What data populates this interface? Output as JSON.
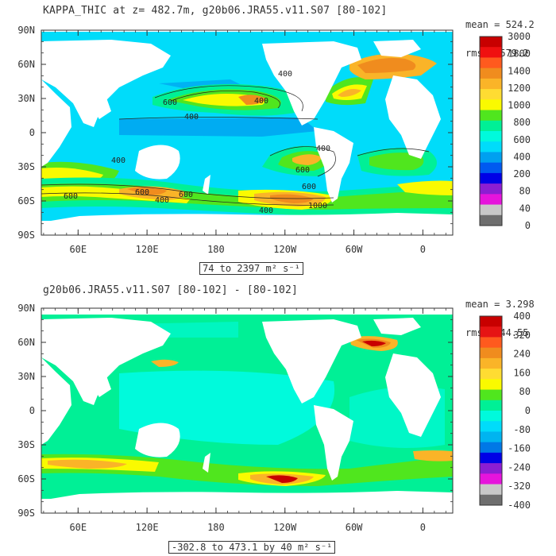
{
  "panels": [
    {
      "title": "KAPPA_THIC at z= 482.7m, g20b06.JRA55.v11.S07 [80-102]",
      "mean": "mean = 524.2",
      "rms": "rms = 579.2",
      "range_label": "74 to 2397 m² s⁻¹",
      "lat_labels": [
        "90N",
        "60N",
        "30N",
        "0",
        "30S",
        "60S",
        "90S"
      ],
      "lon_labels": [
        "60E",
        "120E",
        "180",
        "120W",
        "60W",
        "0"
      ],
      "colorbar_labels": [
        "3000",
        "1800",
        "1400",
        "1200",
        "1000",
        "800",
        "600",
        "400",
        "200",
        "80",
        "40",
        "0"
      ],
      "colorbar_colors": [
        "#c80000",
        "#f01010",
        "#ff5a1e",
        "#f08c1e",
        "#fab428",
        "#ffdc32",
        "#fafa00",
        "#50e61e",
        "#00f096",
        "#00fadc",
        "#00dcfa",
        "#00a0f0",
        "#005af0",
        "#0000e6",
        "#8c1ed2",
        "#e614dc",
        "#c8c8c8",
        "#6e6e6e"
      ],
      "contour_labels": [
        {
          "text": "600"
        },
        {
          "text": "400"
        },
        {
          "text": "400"
        },
        {
          "text": "400"
        },
        {
          "text": "600"
        },
        {
          "text": "400"
        },
        {
          "text": "600"
        },
        {
          "text": "600"
        },
        {
          "text": "400"
        },
        {
          "text": "400"
        },
        {
          "text": "1000"
        },
        {
          "text": "600"
        },
        {
          "text": "400"
        },
        {
          "text": "600"
        }
      ]
    },
    {
      "title": "g20b06.JRA55.v11.S07 [80-102] - [80-102]",
      "mean": "mean = 3.298",
      "rms": "rms = 44.55",
      "range_label": "-302.8 to 473.1 by 40 m² s⁻¹",
      "lat_labels": [
        "90N",
        "60N",
        "30N",
        "0",
        "30S",
        "60S",
        "90S"
      ],
      "lon_labels": [
        "60E",
        "120E",
        "180",
        "120W",
        "60W",
        "0"
      ],
      "colorbar_labels": [
        "400",
        "320",
        "240",
        "160",
        "80",
        "0",
        "-80",
        "-160",
        "-240",
        "-320",
        "-400"
      ],
      "colorbar_colors": [
        "#c80000",
        "#e61414",
        "#ff5a1e",
        "#f08c1e",
        "#fab428",
        "#ffdc32",
        "#fafa00",
        "#50e61e",
        "#00f096",
        "#00fadc",
        "#00dcfa",
        "#00b4f0",
        "#0078e6",
        "#0000e6",
        "#8c1ed2",
        "#e614dc",
        "#c8c8c8",
        "#6e6e6e"
      ]
    }
  ]
}
